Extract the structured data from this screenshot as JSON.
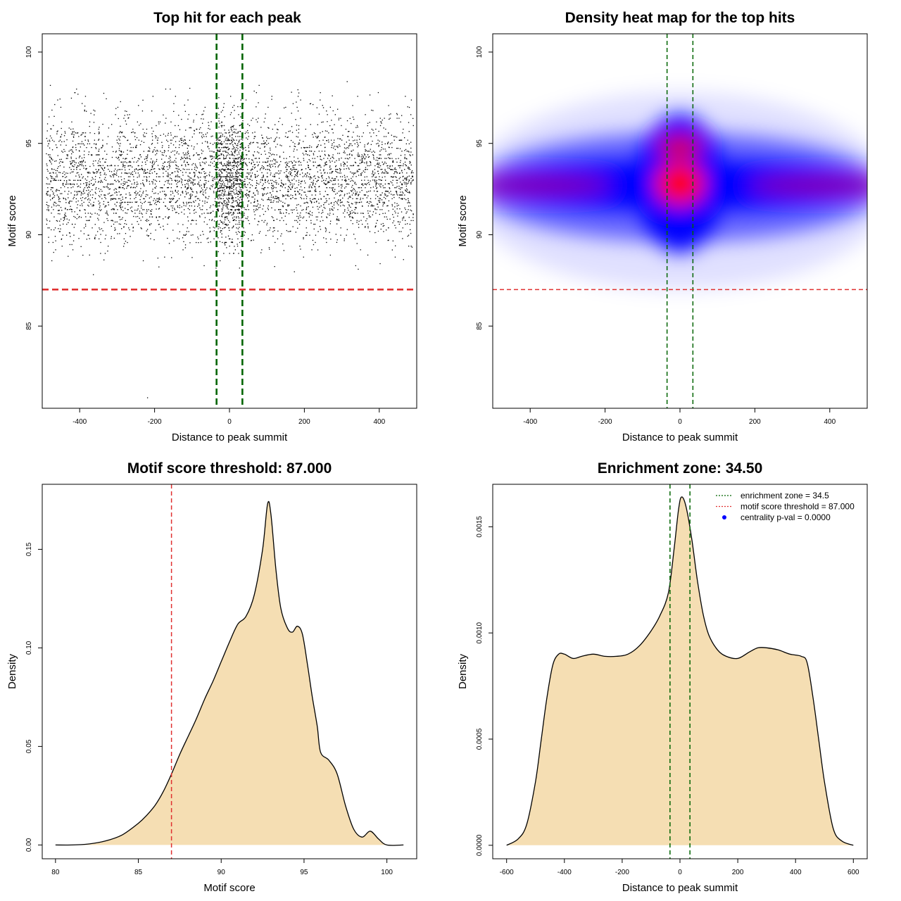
{
  "chart_data": [
    {
      "type": "scatter",
      "title": "Top hit for each peak",
      "xlabel": "Distance to peak summit",
      "ylabel": "Motif score",
      "xlim": [
        -500,
        500
      ],
      "ylim": [
        80.5,
        101
      ],
      "xticks": [
        "-400",
        "-200",
        "0",
        "200",
        "400"
      ],
      "yticks": [
        "85",
        "90",
        "95",
        "100"
      ],
      "grid": false,
      "point_distribution": {
        "x_range": [
          -490,
          490
        ],
        "y_mode": 92.7,
        "y_secondary_mode": 94.8,
        "center_enriched_x": [
          -35,
          35
        ],
        "approx_points": 5000,
        "min_y": 81.1,
        "max_y": 100
      },
      "lines": [
        {
          "orientation": "vertical",
          "value": -34.5,
          "color": "#006400",
          "style": "dashed"
        },
        {
          "orientation": "vertical",
          "value": 34.5,
          "color": "#006400",
          "style": "dashed"
        },
        {
          "orientation": "horizontal",
          "value": 87.0,
          "color": "#e03030",
          "style": "dashed"
        }
      ]
    },
    {
      "type": "heatmap",
      "title": "Density heat map for the top hits",
      "xlabel": "Distance to peak summit",
      "ylabel": "Motif score",
      "xlim": [
        -500,
        500
      ],
      "ylim": [
        80.5,
        101
      ],
      "xticks": [
        "-400",
        "-200",
        "0",
        "200",
        "400"
      ],
      "yticks": [
        "85",
        "90",
        "95",
        "100"
      ],
      "colors": [
        "#ffffff",
        "#0000ff",
        "#ff0000"
      ],
      "hotspots": [
        {
          "x": 0,
          "y": 92.7,
          "level": "max"
        },
        {
          "x": 0,
          "y": 94.8,
          "level": "high"
        },
        {
          "x": -400,
          "y": 92.7,
          "level": "medium"
        },
        {
          "x": 400,
          "y": 92.7,
          "level": "medium"
        }
      ],
      "lines": [
        {
          "orientation": "vertical",
          "value": -34.5,
          "color": "#006400",
          "style": "dashed"
        },
        {
          "orientation": "vertical",
          "value": 34.5,
          "color": "#006400",
          "style": "dashed"
        },
        {
          "orientation": "horizontal",
          "value": 87.0,
          "color": "#e03030",
          "style": "dashed"
        }
      ]
    },
    {
      "type": "area",
      "title": "Motif score threshold: 87.000",
      "xlabel": "Motif score",
      "ylabel": "Density",
      "xlim": [
        79.2,
        101.8
      ],
      "ylim": [
        -0.007,
        0.183
      ],
      "xticks": [
        "80",
        "85",
        "90",
        "95",
        "100"
      ],
      "yticks": [
        "0.00",
        "0.05",
        "0.10",
        "0.15"
      ],
      "fill": "#f5deb3",
      "x": [
        80,
        81,
        82,
        83,
        84,
        85,
        85.5,
        86,
        86.5,
        87,
        87.5,
        88,
        88.5,
        89,
        89.5,
        90,
        90.5,
        91,
        91.5,
        92,
        92.5,
        92.8,
        93,
        93.3,
        93.6,
        94,
        94.3,
        94.6,
        94.9,
        95.2,
        95.5,
        95.8,
        96,
        96.5,
        97,
        97.5,
        98,
        98.5,
        99,
        99.5,
        100,
        101
      ],
      "y": [
        0,
        0,
        0.0005,
        0.002,
        0.005,
        0.011,
        0.015,
        0.02,
        0.027,
        0.036,
        0.046,
        0.055,
        0.064,
        0.074,
        0.083,
        0.093,
        0.103,
        0.112,
        0.116,
        0.127,
        0.15,
        0.173,
        0.168,
        0.14,
        0.12,
        0.11,
        0.108,
        0.111,
        0.107,
        0.092,
        0.075,
        0.06,
        0.047,
        0.043,
        0.036,
        0.02,
        0.008,
        0.004,
        0.007,
        0.003,
        0,
        0
      ],
      "lines": [
        {
          "orientation": "vertical",
          "value": 87.0,
          "color": "#e03030",
          "style": "dashed"
        }
      ]
    },
    {
      "type": "area",
      "title": "Enrichment zone: 34.50",
      "xlabel": "Distance to peak summit",
      "ylabel": "Density",
      "xlim": [
        -648,
        648
      ],
      "ylim": [
        -6.35e-05,
        0.0017
      ],
      "xticks": [
        "-600",
        "-400",
        "-200",
        "0",
        "200",
        "400",
        "600"
      ],
      "yticks": [
        "0.0000",
        "0.0005",
        "0.0010",
        "0.0015"
      ],
      "fill": "#f5deb3",
      "x": [
        -600,
        -560,
        -530,
        -500,
        -480,
        -460,
        -440,
        -420,
        -400,
        -370,
        -340,
        -300,
        -260,
        -220,
        -180,
        -140,
        -100,
        -70,
        -40,
        -20,
        -5,
        5,
        20,
        40,
        60,
        80,
        100,
        130,
        160,
        200,
        240,
        270,
        300,
        340,
        380,
        420,
        440,
        460,
        480,
        500,
        530,
        560,
        600
      ],
      "y": [
        0,
        3e-05,
        0.0001,
        0.0003,
        0.0005,
        0.0007,
        0.00085,
        0.0009,
        0.0009,
        0.00088,
        0.00089,
        0.0009,
        0.00089,
        0.00089,
        0.0009,
        0.00094,
        0.00101,
        0.00108,
        0.00119,
        0.0014,
        0.00158,
        0.00164,
        0.0016,
        0.00145,
        0.00125,
        0.00109,
        0.00099,
        0.00092,
        0.00089,
        0.00088,
        0.00091,
        0.00093,
        0.00093,
        0.00092,
        0.0009,
        0.00089,
        0.00086,
        0.0007,
        0.0005,
        0.0003,
        8e-05,
        2e-05,
        0
      ],
      "lines": [
        {
          "orientation": "vertical",
          "value": -34.5,
          "color": "#006400",
          "style": "dashed"
        },
        {
          "orientation": "vertical",
          "value": 34.5,
          "color": "#006400",
          "style": "dashed"
        }
      ],
      "legend": {
        "placement": "top-right",
        "entries": [
          {
            "label": "enrichment zone = 34.5",
            "color": "#006400",
            "symbol": "dotted-line"
          },
          {
            "label": "motif score threshold = 87.000",
            "color": "#e03030",
            "symbol": "dotted-line"
          },
          {
            "label": "centrality p-val = 0.0000",
            "color": "#0000ff",
            "symbol": "dot"
          }
        ]
      }
    }
  ]
}
